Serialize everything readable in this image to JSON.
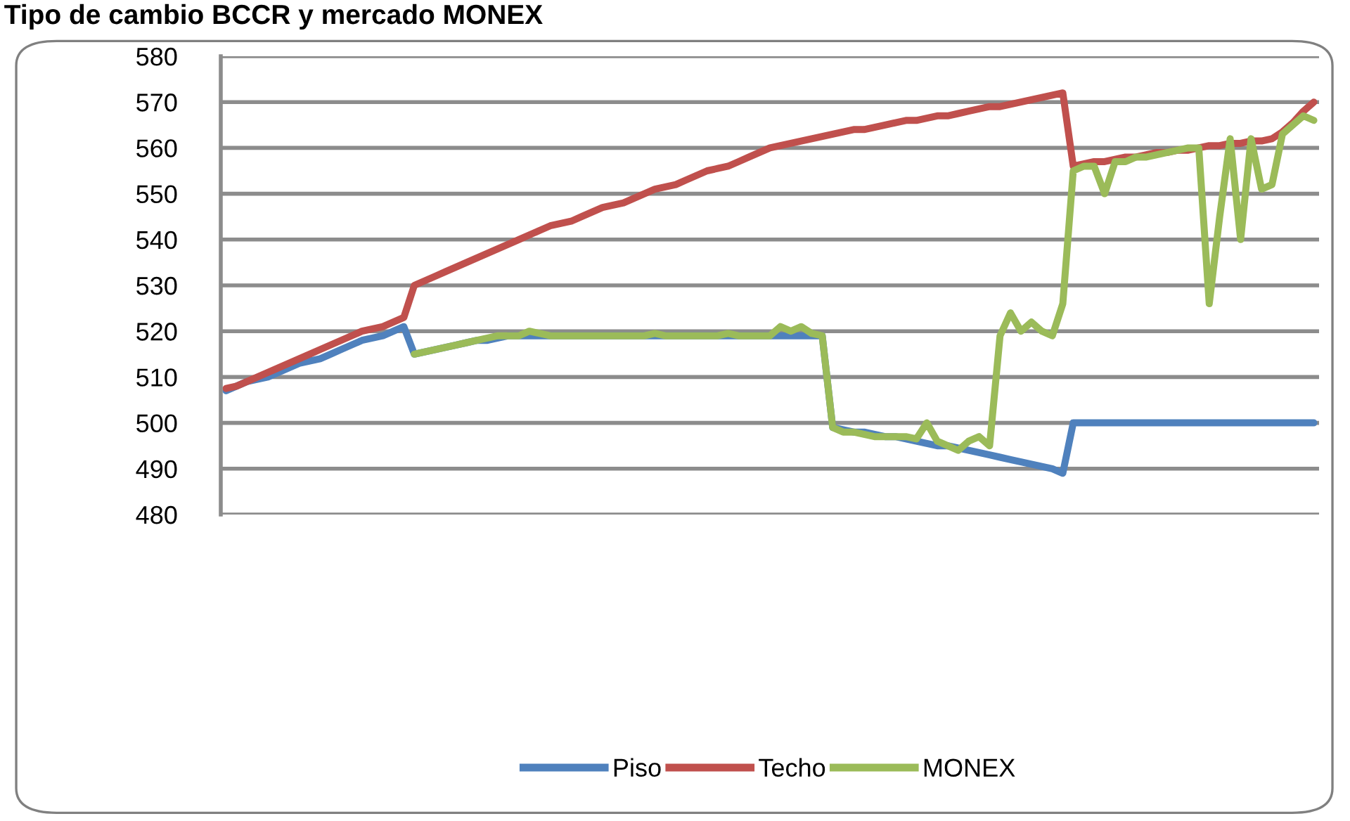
{
  "chart_data": {
    "type": "line",
    "title": "Tipo de cambio BCCR y mercado MONEX",
    "categories": [
      null,
      null,
      null,
      null,
      null,
      null,
      null,
      null,
      null,
      null,
      null,
      null,
      null,
      null,
      null,
      null,
      null,
      null,
      null,
      null,
      null,
      null,
      null,
      null,
      null,
      null,
      null,
      null,
      null,
      null,
      null,
      null,
      null,
      null,
      null,
      null,
      null,
      null,
      null,
      null,
      null,
      null,
      null,
      null,
      null,
      null,
      null,
      null,
      null,
      null,
      null,
      null,
      null,
      null,
      null,
      null,
      null,
      null,
      null,
      null,
      null,
      null,
      null,
      null,
      null,
      null,
      null,
      null,
      null,
      null,
      null,
      null,
      null,
      null,
      null,
      null,
      null,
      null,
      null,
      null,
      null,
      null,
      null,
      null,
      null,
      null,
      null,
      null,
      null,
      null,
      null,
      null,
      null,
      null,
      null,
      null,
      null,
      null,
      null,
      null,
      null,
      null,
      null,
      null,
      null
    ],
    "series": [
      {
        "name": "Piso",
        "color": "#4f81bd",
        "values": [
          507,
          508,
          509,
          509.5,
          510,
          511,
          512,
          513,
          513.5,
          514,
          515,
          516,
          517,
          518,
          518.5,
          519,
          520,
          521,
          515,
          515.5,
          516,
          516.5,
          517,
          517.5,
          518,
          518,
          518.5,
          519,
          519,
          519,
          519,
          519,
          519,
          519,
          519,
          519,
          519,
          519,
          519,
          519,
          519,
          519,
          519,
          519,
          519,
          519,
          519,
          519,
          519,
          519,
          519,
          519,
          519,
          519,
          519,
          519,
          519,
          519,
          499,
          498.5,
          498,
          498,
          497.5,
          497,
          497,
          496.5,
          496,
          495.5,
          495,
          495,
          494.5,
          494,
          493.5,
          493,
          492.5,
          492,
          491.5,
          491,
          490.5,
          490,
          489,
          500,
          500,
          500,
          500,
          500,
          500,
          500,
          500,
          500,
          500,
          500,
          500,
          500,
          500,
          500,
          500,
          500,
          500,
          500,
          500,
          500,
          500,
          500,
          500
        ]
      },
      {
        "name": "Techo",
        "color": "#c0504d",
        "values": [
          507.5,
          508,
          509,
          510,
          511,
          512,
          513,
          514,
          515,
          516,
          517,
          518,
          519,
          520,
          520.5,
          521,
          522,
          523,
          530,
          531,
          532,
          533,
          534,
          535,
          536,
          537,
          538,
          539,
          540,
          541,
          542,
          543,
          543.5,
          544,
          545,
          546,
          547,
          547.5,
          548,
          549,
          550,
          551,
          551.5,
          552,
          553,
          554,
          555,
          555.5,
          556,
          557,
          558,
          559,
          560,
          560.5,
          561,
          561.5,
          562,
          562.5,
          563,
          563.5,
          564,
          564,
          564.5,
          565,
          565.5,
          566,
          566,
          566.5,
          567,
          567,
          567.5,
          568,
          568.5,
          569,
          569,
          569.5,
          570,
          570.5,
          571,
          571.5,
          572,
          556,
          556.5,
          557,
          557,
          557.5,
          558,
          558,
          558.5,
          559,
          559,
          559.5,
          559.5,
          560,
          560.5,
          560.5,
          561,
          561,
          561.5,
          561.5,
          562,
          563.5,
          565.5,
          568,
          570
        ]
      },
      {
        "name": "MONEX",
        "color": "#9bbb59",
        "values": [
          null,
          null,
          null,
          null,
          null,
          null,
          null,
          null,
          null,
          null,
          null,
          null,
          null,
          null,
          null,
          null,
          null,
          null,
          515,
          515.5,
          516,
          516.5,
          517,
          517.5,
          518,
          518.5,
          519,
          519,
          519,
          520,
          519.5,
          519,
          519,
          519,
          519,
          519,
          519,
          519,
          519,
          519,
          519,
          519.5,
          519,
          519,
          519,
          519,
          519,
          519,
          519.5,
          519,
          519,
          519,
          519,
          521,
          520,
          521,
          519.5,
          519,
          499,
          498,
          498,
          497.5,
          497,
          497,
          497,
          497,
          496.5,
          500,
          496,
          495,
          494,
          496,
          497,
          495,
          519,
          524,
          520,
          522,
          520,
          519,
          526,
          555,
          556,
          556,
          550,
          557,
          557,
          558,
          558,
          558.5,
          559,
          559.5,
          560,
          560,
          526,
          545,
          562,
          540,
          562,
          551,
          552,
          563,
          565,
          567,
          566
        ]
      }
    ],
    "ylim": [
      480,
      580
    ],
    "yticks": [
      480,
      490,
      500,
      510,
      520,
      530,
      540,
      550,
      560,
      570,
      580
    ],
    "grid": "y",
    "legend": "bottom",
    "tick_labels": "y",
    "line_style": "solid",
    "marker": "none"
  }
}
